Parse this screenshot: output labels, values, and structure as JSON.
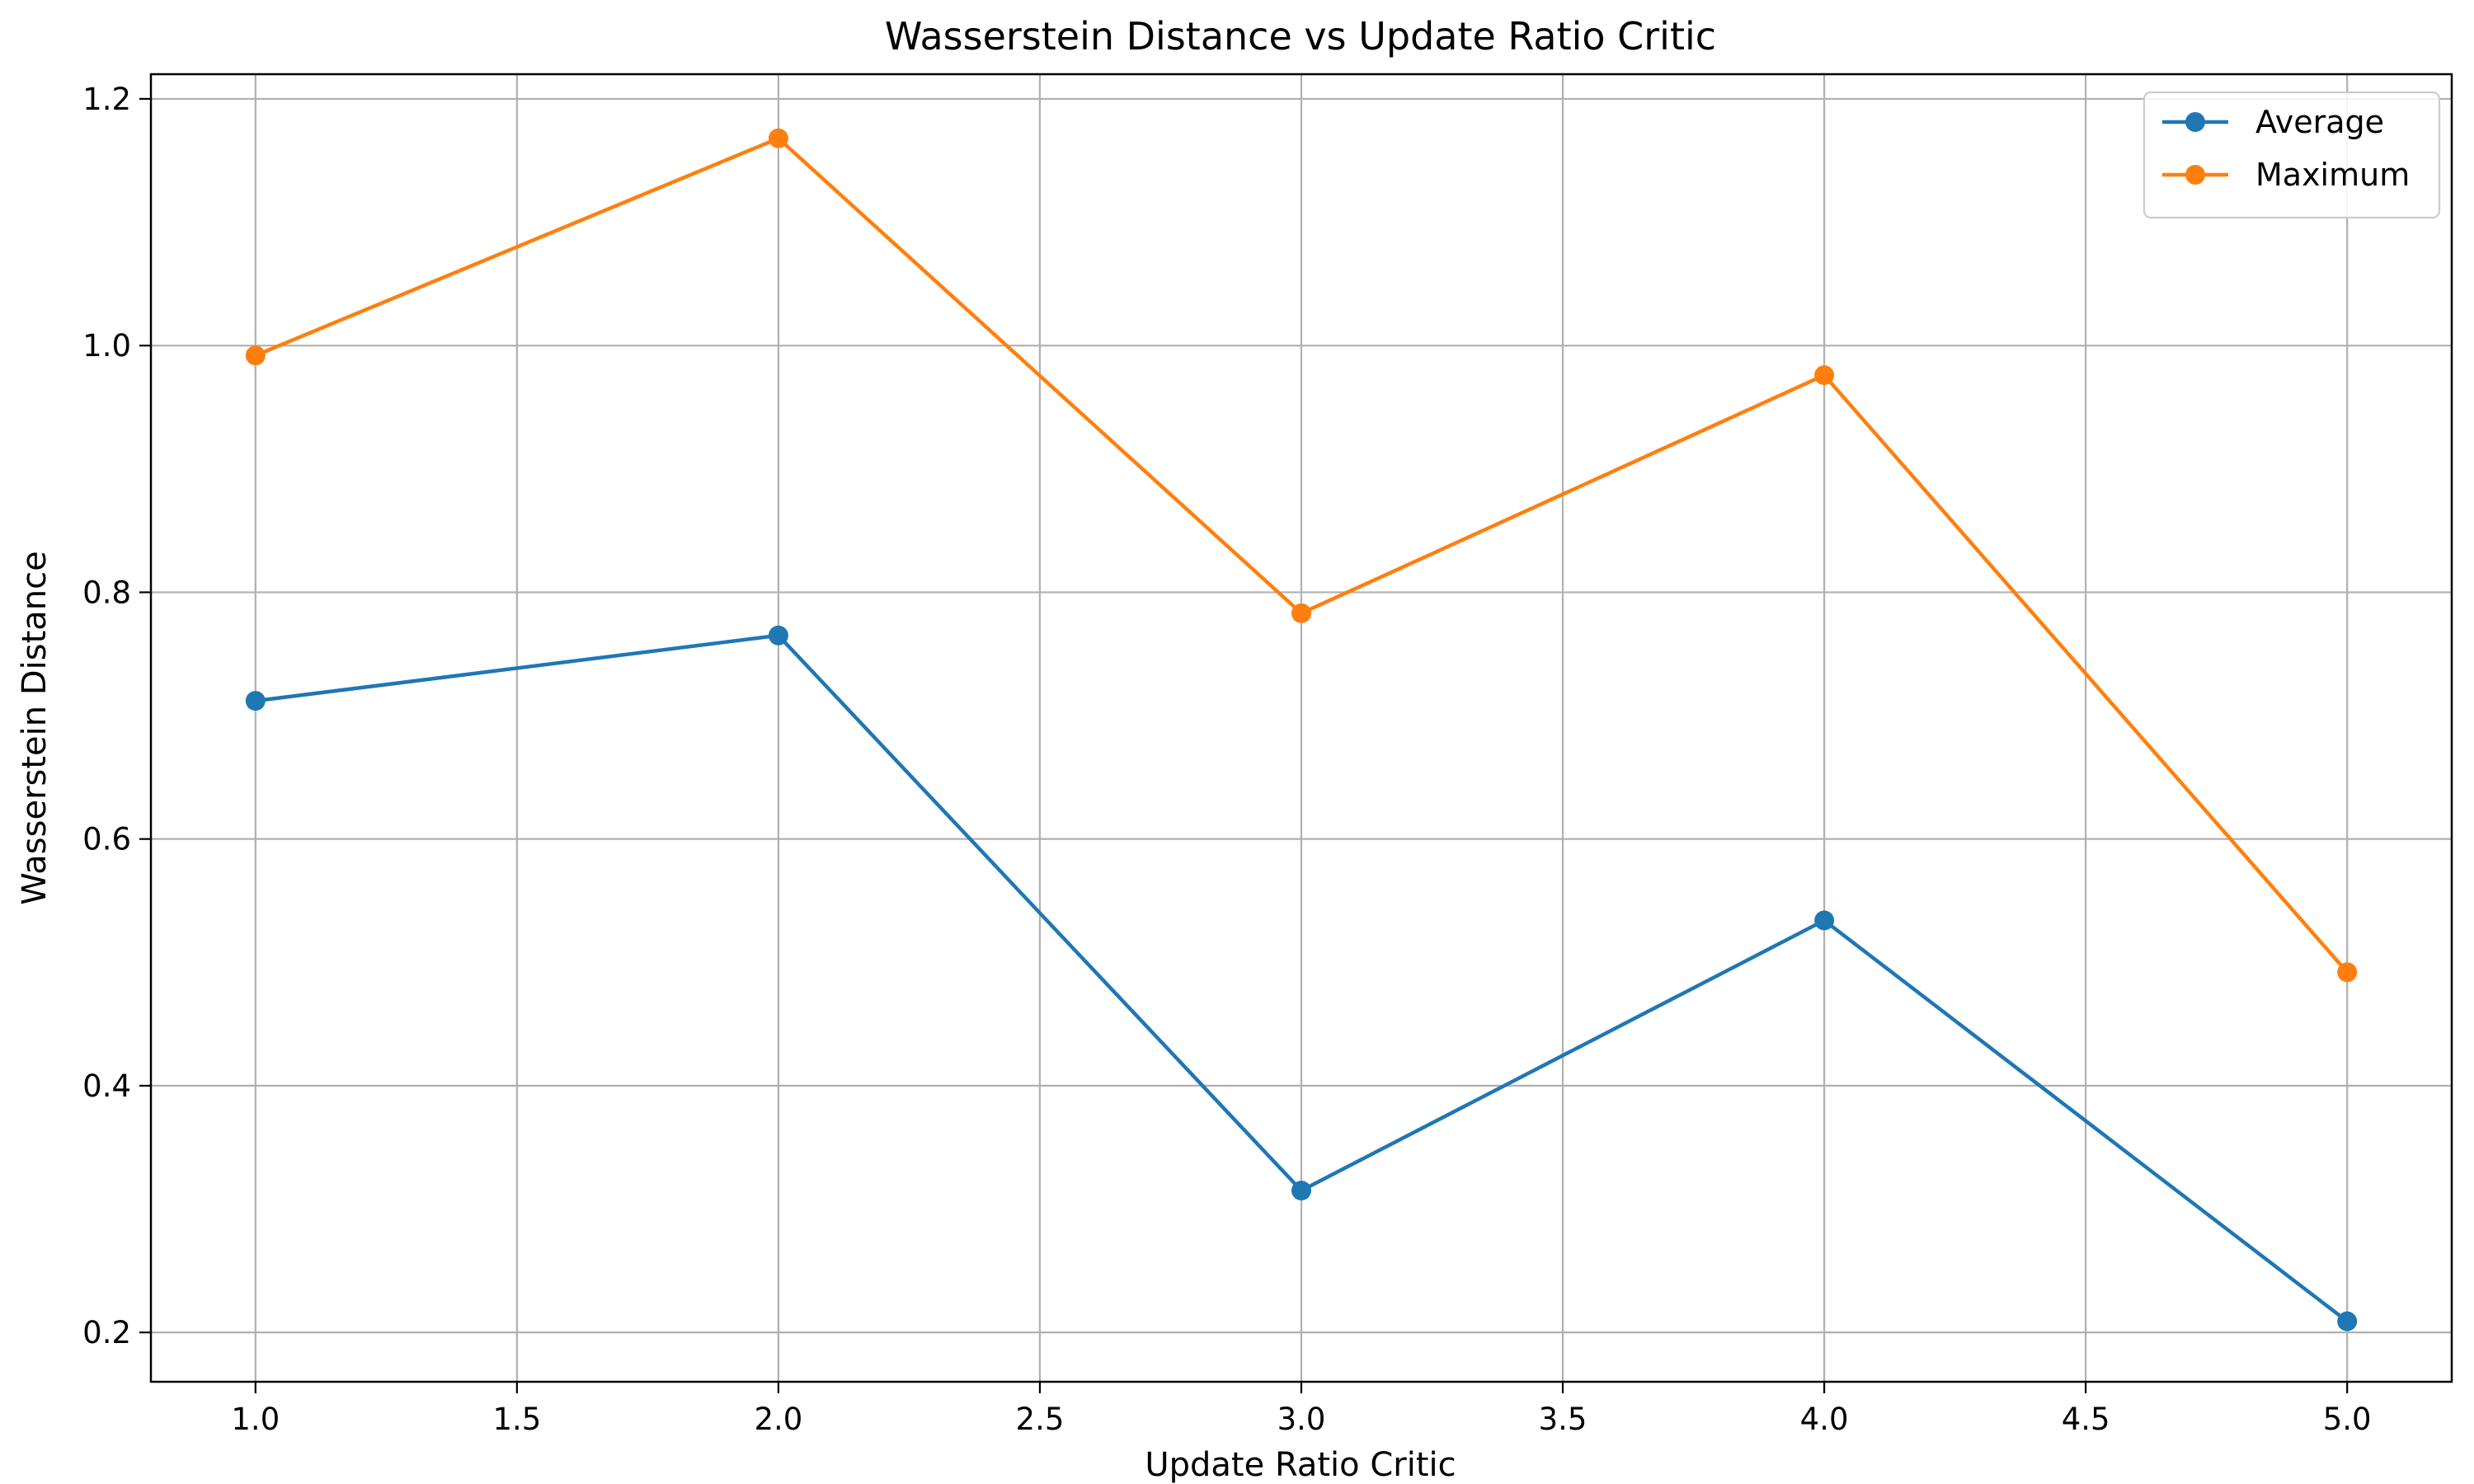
{
  "chart_data": {
    "type": "line",
    "title": "Wasserstein Distance vs Update Ratio Critic",
    "xlabel": "Update Ratio Critic",
    "ylabel": "Wasserstein Distance",
    "x": [
      1,
      2,
      3,
      4,
      5
    ],
    "xlim": [
      0.8,
      5.2
    ],
    "ylim": [
      0.16,
      1.22
    ],
    "xticks": [
      1.0,
      1.5,
      2.0,
      2.5,
      3.0,
      3.5,
      4.0,
      4.5,
      5.0
    ],
    "yticks": [
      0.2,
      0.4,
      0.6,
      0.8,
      1.0,
      1.2
    ],
    "grid": true,
    "legend_position": "top-right",
    "series": [
      {
        "name": "Average",
        "color": "#1f77b4",
        "marker": "circle",
        "values": [
          0.712,
          0.765,
          0.315,
          0.534,
          0.209
        ]
      },
      {
        "name": "Maximum",
        "color": "#ff7f0e",
        "marker": "circle",
        "values": [
          0.992,
          1.168,
          0.783,
          0.976,
          0.492
        ]
      }
    ]
  }
}
